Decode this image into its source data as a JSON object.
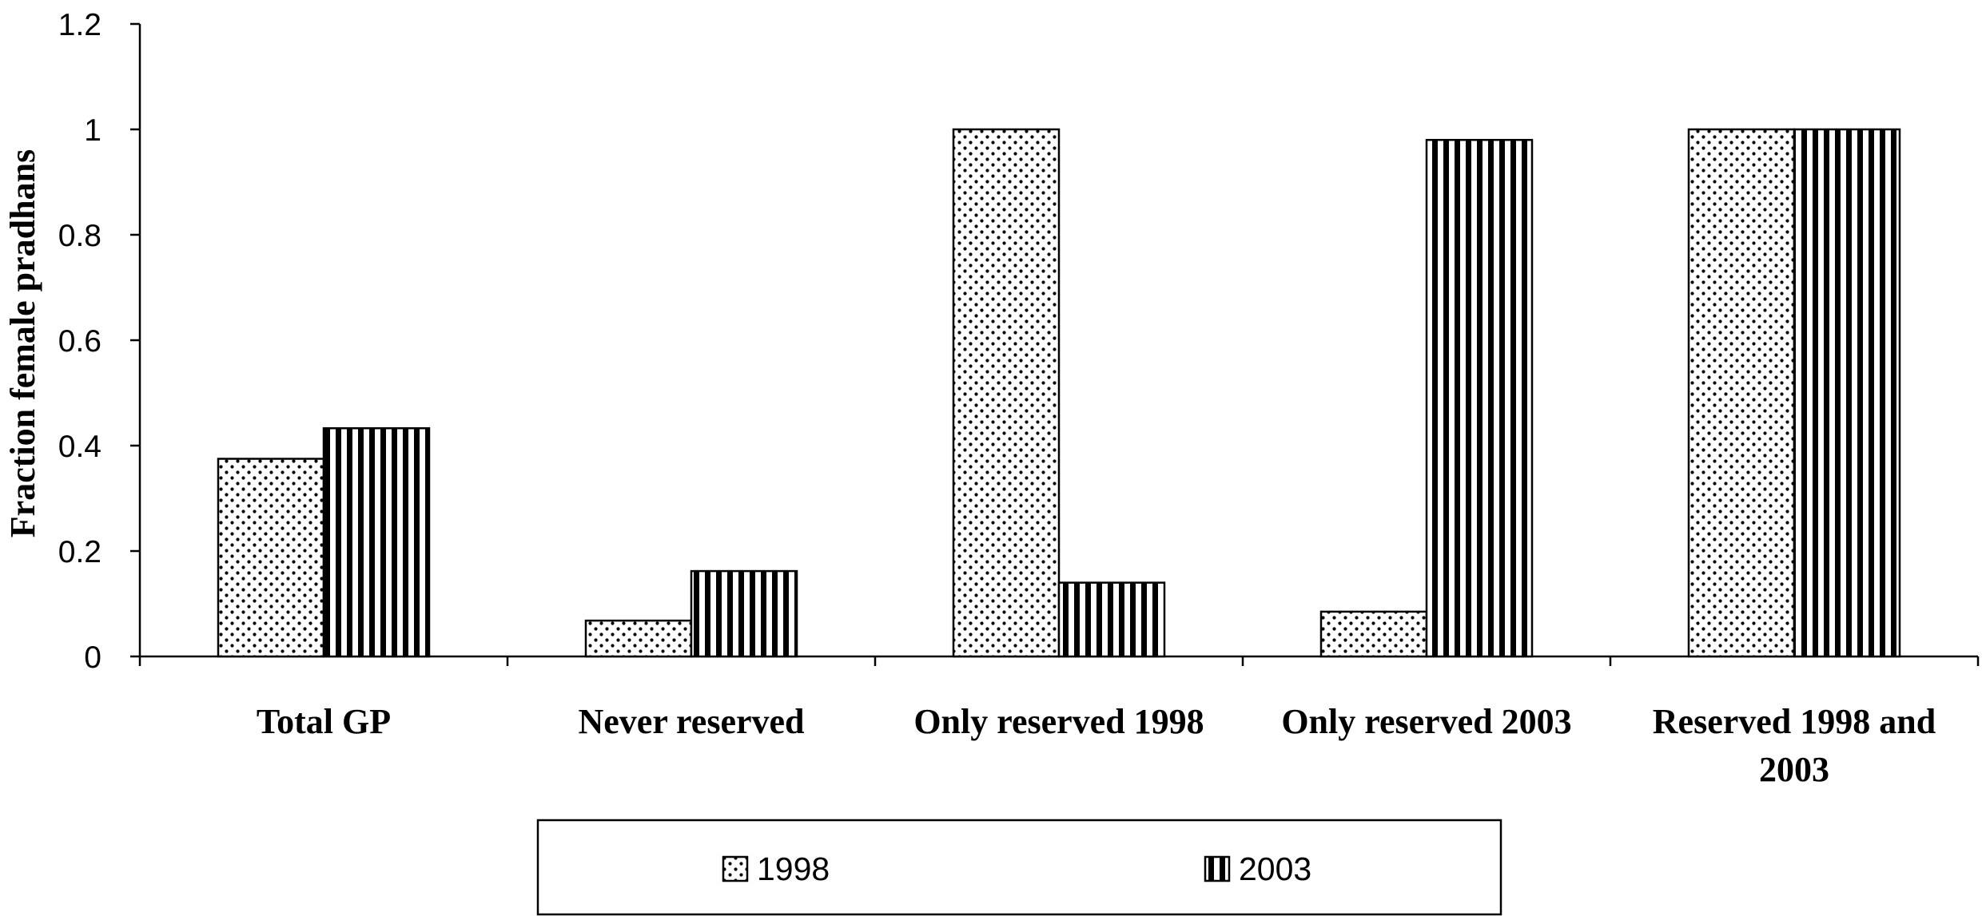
{
  "chart_data": {
    "type": "bar",
    "title": "",
    "xlabel": "",
    "ylabel": "Fraction female pradhans",
    "ylim": [
      0,
      1.2
    ],
    "yticks": [
      "0",
      "0.2",
      "0.4",
      "0.6",
      "0.8",
      "1",
      "1.2"
    ],
    "categories": [
      [
        "Total GP"
      ],
      [
        "Never reserved"
      ],
      [
        "Only reserved 1998"
      ],
      [
        "Only reserved 2003"
      ],
      [
        "Reserved 1998 and",
        "2003"
      ]
    ],
    "series": [
      {
        "name": "1998",
        "pattern": "dots",
        "values": [
          0.375,
          0.068,
          1.0,
          0.085,
          1.0
        ]
      },
      {
        "name": "2003",
        "pattern": "stripes",
        "values": [
          0.433,
          0.162,
          0.14,
          0.98,
          1.0
        ]
      }
    ],
    "grid": false,
    "legend": "bottom"
  }
}
